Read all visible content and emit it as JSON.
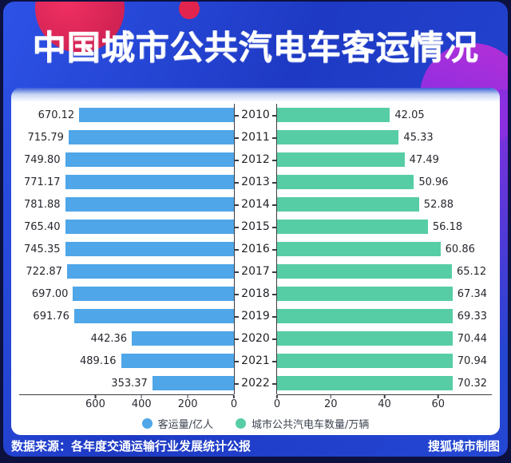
{
  "header": {
    "title": "中国城市公共汽电车客运情况"
  },
  "footer": {
    "source": "数据来源：各年度交通运输行业发展统计公报",
    "credit": "搜狐城市制图"
  },
  "legend": {
    "items": [
      {
        "label": "客运量/亿人",
        "color": "#4fa6e8"
      },
      {
        "label": "城市公共汽电车数量/万辆",
        "color": "#57cda5"
      }
    ],
    "position": "bottom-center"
  },
  "chart_data": {
    "type": "bar",
    "variant": "diverging-horizontal-pyramid",
    "title": "中国城市公共汽电车客运情况",
    "categories": [
      "2010",
      "2011",
      "2012",
      "2013",
      "2014",
      "2015",
      "2016",
      "2017",
      "2018",
      "2019",
      "2020",
      "2021",
      "2022"
    ],
    "series": [
      {
        "name": "客运量/亿人",
        "side": "left",
        "color": "#4fa6e8",
        "values": [
          670.12,
          715.79,
          749.8,
          771.17,
          781.88,
          765.4,
          745.35,
          722.87,
          697.0,
          691.76,
          442.36,
          489.16,
          353.37
        ],
        "axis_ticks": [
          600,
          400,
          200,
          0
        ],
        "axis_direction": "increases-right-to-left",
        "plot_max": 930
      },
      {
        "name": "城市公共汽电车数量/万辆",
        "side": "right",
        "color": "#57cda5",
        "values": [
          42.05,
          45.33,
          47.49,
          50.96,
          52.88,
          56.18,
          60.86,
          65.12,
          67.34,
          69.33,
          70.44,
          70.94,
          70.32
        ],
        "axis_ticks": [
          0,
          20,
          40,
          60
        ],
        "axis_direction": "increases-left-to-right",
        "plot_max": 80
      }
    ],
    "value_label_format": "2-decimals-at-bar-end",
    "grid": false
  },
  "colors": {
    "page_bg": "#0c1140",
    "card_blue": "#2447d4",
    "bar_blue": "#4fa6e8",
    "bar_green": "#57cda5",
    "accent_red": "#e0244e",
    "accent_purple": "#8a2fe0",
    "axis_line": "#3a3a42",
    "value_text": "#26262e",
    "panel_bg": "#ffffff"
  }
}
